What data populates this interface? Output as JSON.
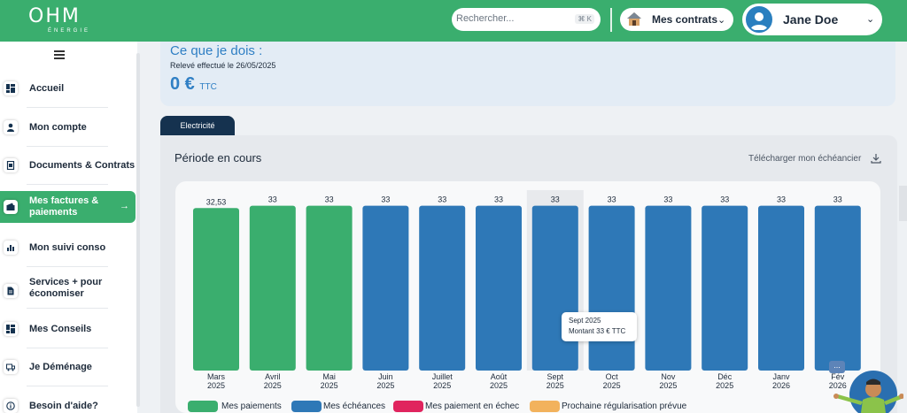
{
  "header": {
    "logo_main": "OHM",
    "logo_sub": "ÉNERGIE",
    "search_placeholder": "Rechercher...",
    "search_shortcut": "⌘ K",
    "contracts_label": "Mes contrats",
    "user_name": "Jane Doe",
    "colors": {
      "brand_green": "#3aae6e",
      "white": "#ffffff"
    }
  },
  "sidebar": {
    "items": [
      {
        "label": "Accueil",
        "icon": "dashboard-icon"
      },
      {
        "label": "Mon compte",
        "icon": "user-icon"
      },
      {
        "label": "Documents & Contrats",
        "icon": "document-icon"
      },
      {
        "label": "Mes factures & paiements",
        "icon": "wallet-icon",
        "active": true
      },
      {
        "label": "Mon suivi conso",
        "icon": "chart-icon"
      },
      {
        "label": "Services + pour économiser",
        "icon": "file-icon"
      },
      {
        "label": "Mes Conseils",
        "icon": "dashboard-icon"
      },
      {
        "label": "Je Déménage",
        "icon": "truck-icon"
      },
      {
        "label": "Besoin d'aide?",
        "icon": "help-icon"
      }
    ]
  },
  "due": {
    "title": "Ce que je dois :",
    "reading_date": "Relevé effectué le 26/05/2025",
    "amount": "0 €",
    "amount_suffix": "TTC"
  },
  "tab": {
    "label": "Electricité"
  },
  "panel": {
    "title": "Période en cours",
    "download_label": "Télécharger mon échéancier"
  },
  "chart_data": {
    "type": "bar",
    "categories": [
      "Mars 2025",
      "Avril 2025",
      "Mai 2025",
      "Juin 2025",
      "Juillet 2025",
      "Août 2025",
      "Sept 2025",
      "Oct 2025",
      "Nov 2025",
      "Déc 2025",
      "Janv 2026",
      "Fév 2026"
    ],
    "category_lines": [
      [
        "Mars",
        "2025"
      ],
      [
        "Avril",
        "2025"
      ],
      [
        "Mai",
        "2025"
      ],
      [
        "Juin",
        "2025"
      ],
      [
        "Juillet",
        "2025"
      ],
      [
        "Août",
        "2025"
      ],
      [
        "Sept",
        "2025"
      ],
      [
        "Oct",
        "2025"
      ],
      [
        "Nov",
        "2025"
      ],
      [
        "Déc",
        "2025"
      ],
      [
        "Janv",
        "2026"
      ],
      [
        "Fév",
        "2026"
      ]
    ],
    "values": [
      32.53,
      33,
      33,
      33,
      33,
      33,
      33,
      33,
      33,
      33,
      33,
      33
    ],
    "value_labels": [
      "32,53",
      "33",
      "33",
      "33",
      "33",
      "33",
      "33",
      "33",
      "33",
      "33",
      "33",
      "33"
    ],
    "kind": [
      "paiement",
      "paiement",
      "paiement",
      "echeance",
      "echeance",
      "echeance",
      "echeance",
      "echeance",
      "echeance",
      "echeance",
      "echeance",
      "echeance"
    ],
    "highlighted_index": 6,
    "ylim": [
      0,
      34
    ],
    "legend": [
      {
        "name": "Mes paiements",
        "color": "#3aae6e"
      },
      {
        "name": "Mes échéances",
        "color": "#2e78b7"
      },
      {
        "name": "Mes paiement en échec",
        "color": "#e0245e"
      },
      {
        "name": "Prochaine régularisation prévue",
        "color": "#f2b25c"
      }
    ],
    "legend_position": "bottom",
    "tooltip": {
      "title": "Sept 2025",
      "body": "Montant 33 € TTC"
    }
  },
  "assistant": {
    "more_label": "..."
  }
}
